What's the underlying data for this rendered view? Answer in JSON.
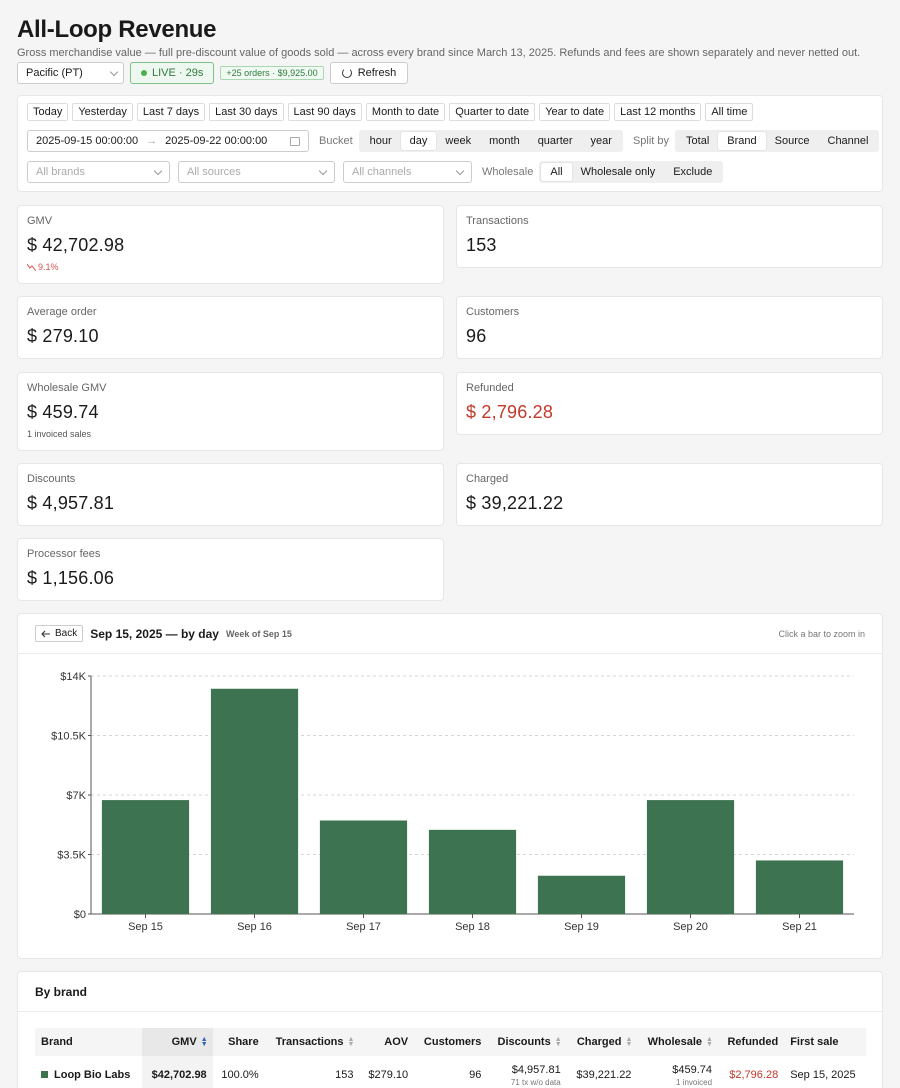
{
  "header": {
    "title": "All-Loop Revenue",
    "subtitle": "Gross merchandise value — full pre-discount value of goods sold — across every brand since March 13, 2025. Refunds and fees are shown separately and never netted out.",
    "timezone": "Pacific (PT)",
    "live": "LIVE · 29s",
    "orders_badge": "+25 orders · $9,925.00",
    "refresh": "Refresh"
  },
  "filters": {
    "presets": [
      "Today",
      "Yesterday",
      "Last 7 days",
      "Last 30 days",
      "Last 90 days",
      "Month to date",
      "Quarter to date",
      "Year to date",
      "Last 12 months",
      "All time"
    ],
    "date_start": "2025-09-15 00:00:00",
    "date_end": "2025-09-22 00:00:00",
    "date_sep": "→",
    "bucket_label": "Bucket",
    "buckets": [
      "hour",
      "day",
      "week",
      "month",
      "quarter",
      "year"
    ],
    "bucket_active": "day",
    "split_label": "Split by",
    "splits": [
      "Total",
      "Brand",
      "Source",
      "Channel"
    ],
    "split_active": "Brand",
    "brands_placeholder": "All brands",
    "sources_placeholder": "All sources",
    "channels_placeholder": "All channels",
    "wholesale_label": "Wholesale",
    "wholesale_options": [
      "All",
      "Wholesale only",
      "Exclude"
    ],
    "wholesale_active": "All"
  },
  "kpis": {
    "gmv": {
      "label": "GMV",
      "value": "$ 42,702.98",
      "delta": "9.1%"
    },
    "transactions": {
      "label": "Transactions",
      "value": "153"
    },
    "aov": {
      "label": "Average order",
      "value": "$ 279.10"
    },
    "customers": {
      "label": "Customers",
      "value": "96"
    },
    "wholesale": {
      "label": "Wholesale GMV",
      "value": "$ 459.74",
      "sub": "1 invoiced sales"
    },
    "refunded": {
      "label": "Refunded",
      "value": "$ 2,796.28"
    },
    "discounts": {
      "label": "Discounts",
      "value": "$ 4,957.81"
    },
    "charged": {
      "label": "Charged",
      "value": "$ 39,221.22"
    },
    "fees": {
      "label": "Processor fees",
      "value": "$ 1,156.06"
    }
  },
  "colors": {
    "bar": "#3d7350",
    "negative": "#c0392b",
    "live": "#2f7a3e"
  },
  "chart": {
    "back": "Back",
    "title": "Sep 15, 2025 — by day",
    "subtitle": "Week of Sep 15",
    "hint": "Click a bar to zoom in"
  },
  "chart_data": {
    "type": "bar",
    "categories": [
      "Sep 15",
      "Sep 16",
      "Sep 17",
      "Sep 18",
      "Sep 19",
      "Sep 20",
      "Sep 21"
    ],
    "values": [
      6700,
      13250,
      5500,
      4950,
      2250,
      6700,
      3150
    ],
    "ylim": [
      0,
      14000
    ],
    "yticks": [
      0,
      3500,
      7000,
      10500,
      14000
    ],
    "ytick_labels": [
      "$0",
      "$3.5K",
      "$7K",
      "$10.5K",
      "$14K"
    ],
    "grid": true,
    "title": "",
    "xlabel": "",
    "ylabel": ""
  },
  "brand_table": {
    "title": "By brand",
    "columns": [
      "Brand",
      "GMV",
      "Share",
      "Transactions",
      "AOV",
      "Customers",
      "Discounts",
      "Charged",
      "Wholesale",
      "Refunded",
      "First sale"
    ],
    "rows": [
      {
        "brand": "Loop Bio Labs",
        "gmv": "$42,702.98",
        "share": "100.0%",
        "transactions": "153",
        "aov": "$279.10",
        "customers": "96",
        "discounts": "$4,957.81",
        "discounts_sub": "71 tx w/o data",
        "charged": "$39,221.22",
        "wholesale": "$459.74",
        "wholesale_sub": "1 invoiced",
        "refunded": "$2,796.28",
        "first_sale": "Sep 15, 2025"
      }
    ]
  }
}
